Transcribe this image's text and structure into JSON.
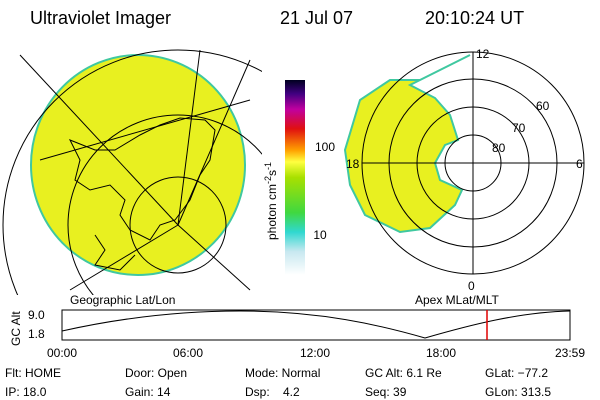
{
  "header": {
    "title": "Ultraviolet Imager",
    "date": "21 Jul 07",
    "time": "20:10:24 UT"
  },
  "colorbar": {
    "label": {
      "base": "photon cm",
      "exp1": "-2",
      "mid": "s",
      "exp2": "-1"
    },
    "ticks": [
      "100",
      "10"
    ]
  },
  "polar": {
    "labels": {
      "top": "12",
      "left": "18",
      "right": "6",
      "bottom": "0"
    },
    "rings": [
      "60",
      "70",
      "80"
    ]
  },
  "captions": {
    "left": "Geographic Lat/Lon",
    "right": "Apex MLat/MLT"
  },
  "altitude": {
    "label": "GC Alt",
    "yticks": [
      "9.0",
      "1.8"
    ],
    "xticks": [
      "00:00",
      "06:00",
      "12:00",
      "18:00",
      "23:59"
    ]
  },
  "status": {
    "rows": [
      [
        "Flt: HOME",
        "Door: Open",
        "Mode: Normal",
        "GC Alt: 6.1 Re",
        "GLat: −77.2"
      ],
      [
        "IP: 18.0",
        "Gain: 14",
        "Dsp:    4.2",
        "Seq: 39",
        "GLon: 313.5"
      ]
    ]
  }
}
